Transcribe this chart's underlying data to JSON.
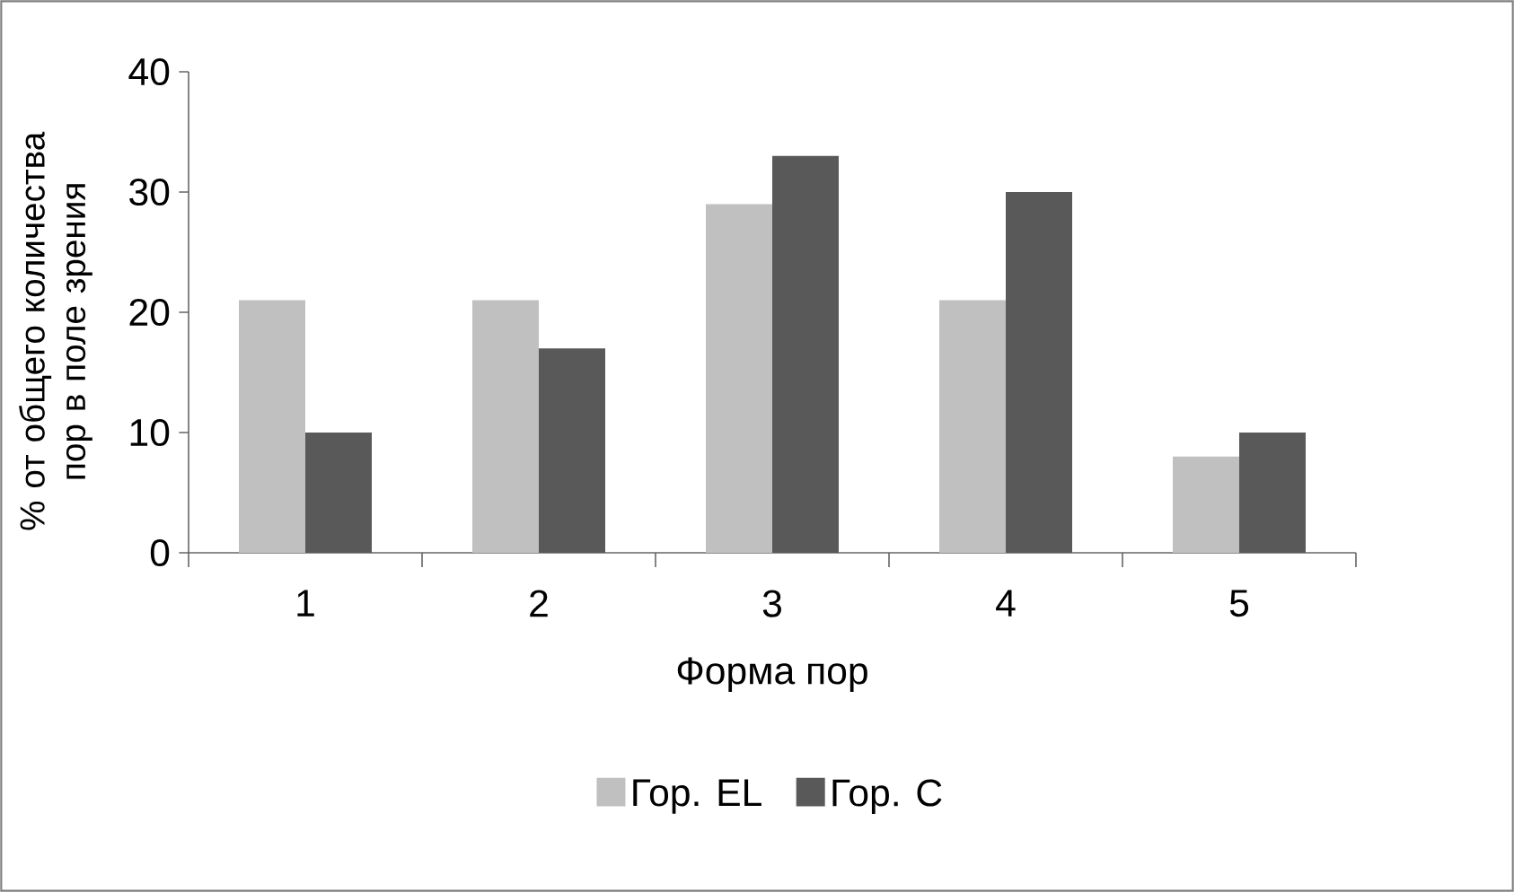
{
  "chart_data": {
    "type": "bar",
    "xlabel": "Форма пор",
    "ylabel": "% от общего количества пор в поле зрения",
    "categories": [
      "1",
      "2",
      "3",
      "4",
      "5"
    ],
    "series": [
      {
        "name": "Гор. EL",
        "color": "#c0c0c0",
        "values": [
          21,
          21,
          29,
          21,
          8
        ]
      },
      {
        "name": "Гор. C",
        "color": "#595959",
        "values": [
          10,
          17,
          33,
          30,
          10
        ]
      }
    ],
    "ylim": [
      0,
      40
    ],
    "yticks": [
      0,
      10,
      20,
      30,
      40
    ],
    "grid": false,
    "legend": "bottom"
  }
}
